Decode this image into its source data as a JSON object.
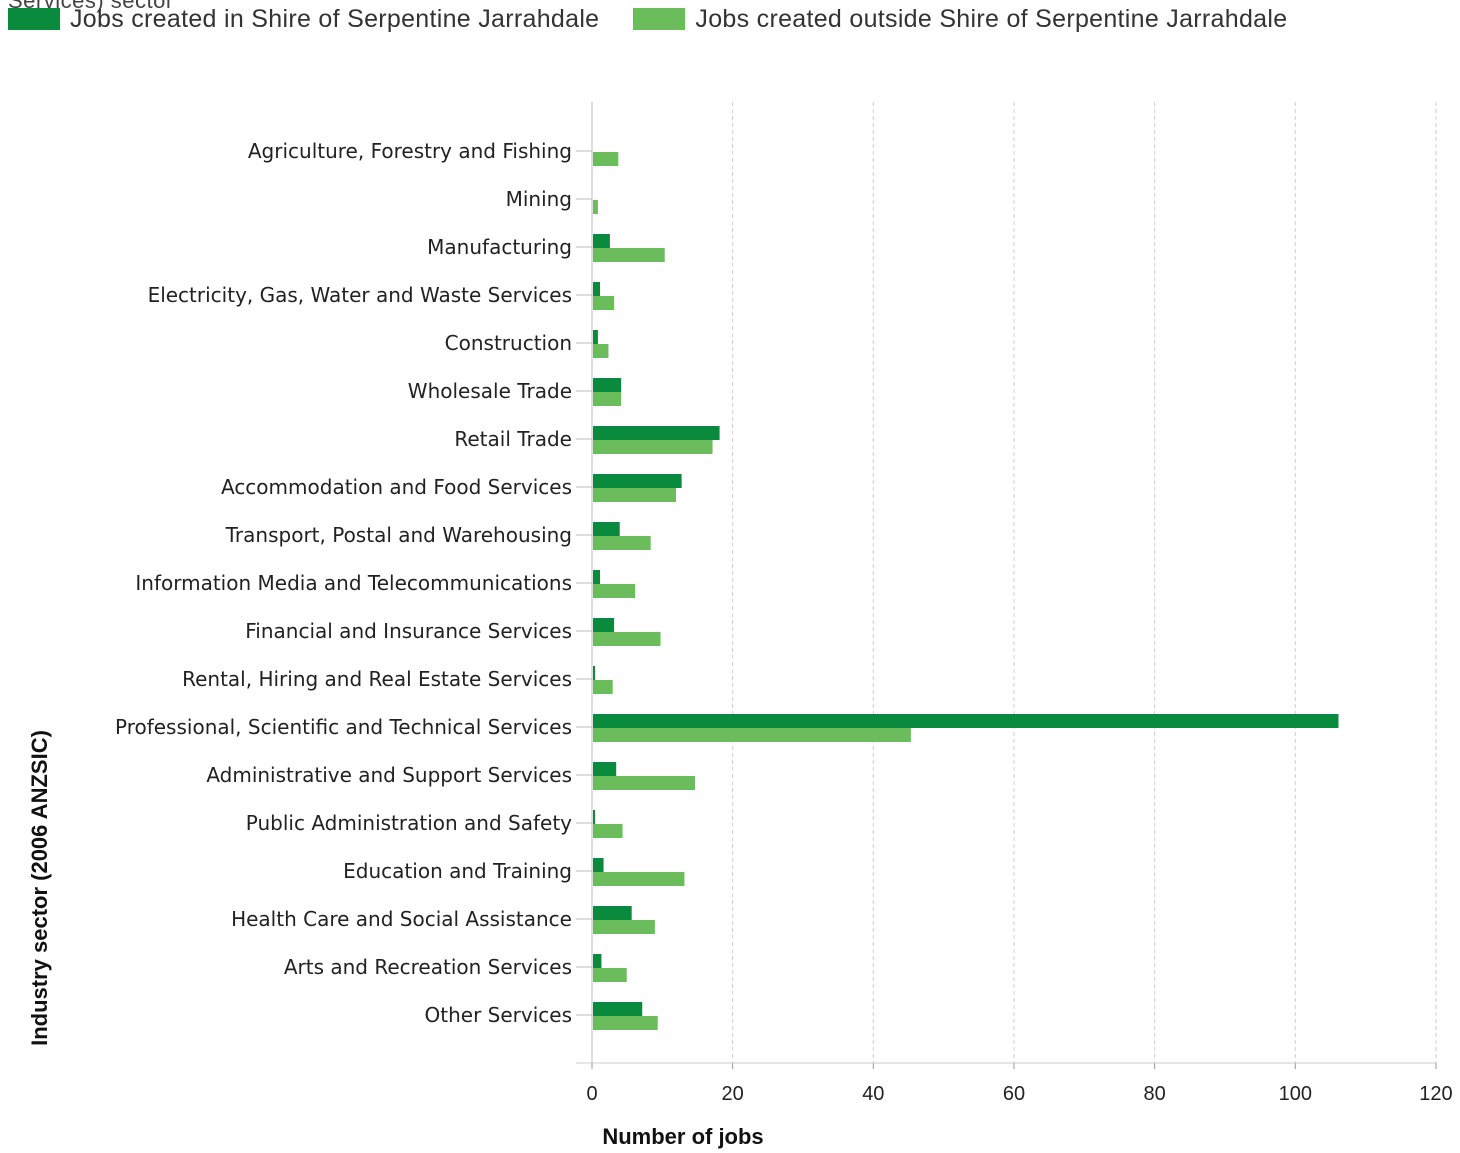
{
  "cut_off_title": "Services) sector",
  "legend": [
    {
      "label": "Jobs created in Shire of Serpentine Jarrahdale",
      "color": "#0a8a3c"
    },
    {
      "label": "Jobs created outside Shire of Serpentine Jarrahdale",
      "color": "#6abd5a"
    }
  ],
  "chart_data": {
    "type": "bar",
    "orientation": "horizontal",
    "categories": [
      "Agriculture, Forestry and Fishing",
      "Mining",
      "Manufacturing",
      "Electricity, Gas, Water and Waste Services",
      "Construction",
      "Wholesale Trade",
      "Retail Trade",
      "Accommodation and Food Services",
      "Transport, Postal and Warehousing",
      "Information Media and Telecommunications",
      "Financial and Insurance Services",
      "Rental, Hiring and Real Estate Services",
      "Professional, Scientific and Technical Services",
      "Administrative and Support Services",
      "Public Administration and Safety",
      "Education and Training",
      "Health Care and Social Assistance",
      "Arts and Recreation Services",
      "Other Services"
    ],
    "series": [
      {
        "name": "Jobs created in Shire of Serpentine Jarrahdale",
        "color": "#0a8a3c",
        "values": [
          0,
          0,
          2.4,
          1,
          0.7,
          4,
          18,
          12.6,
          3.8,
          1,
          3,
          0.3,
          106,
          3.3,
          0.3,
          1.5,
          5.5,
          1.2,
          7
        ]
      },
      {
        "name": "Jobs created outside Shire of Serpentine Jarrahdale",
        "color": "#6abd5a",
        "values": [
          3.6,
          0.7,
          10.2,
          3,
          2.2,
          4,
          17,
          11.8,
          8.2,
          6,
          9.6,
          2.8,
          45.2,
          14.5,
          4.2,
          13,
          8.8,
          4.8,
          9.2
        ]
      }
    ],
    "xlabel": "Number of jobs",
    "ylabel": "Industry sector (2006 ANZSIC)",
    "xlim": [
      0,
      120
    ],
    "xticks": [
      0,
      20,
      40,
      60,
      80,
      100,
      120
    ],
    "grid": true,
    "legend_position": "top-left"
  }
}
